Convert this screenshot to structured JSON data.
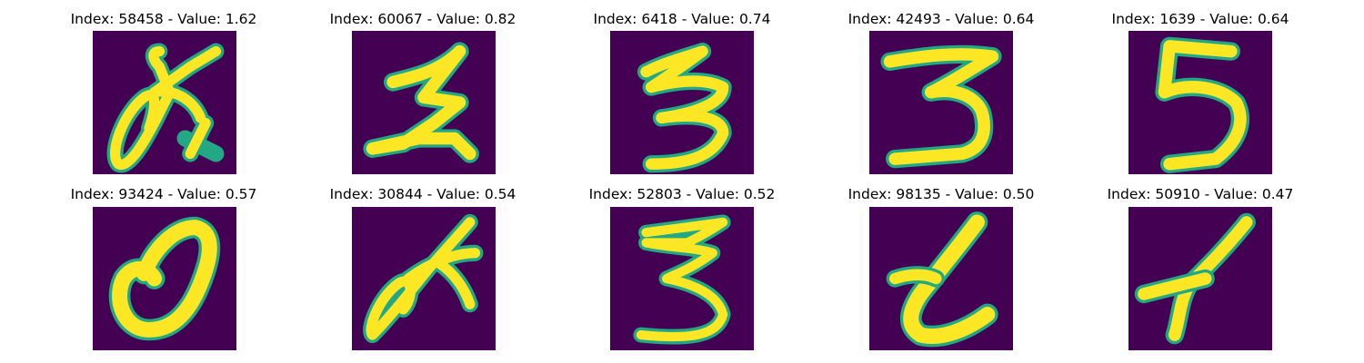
{
  "colors": {
    "background": "#440154",
    "stroke_core": "#fde725",
    "stroke_edge": "#22a884"
  },
  "panels": [
    {
      "title": "Index: 58458 - Value: 1.62",
      "index": 58458,
      "value": 1.62,
      "glyph": "loop-stroke-digit"
    },
    {
      "title": "Index: 60067 - Value: 0.82",
      "index": 60067,
      "value": 0.82,
      "glyph": "digit-2"
    },
    {
      "title": "Index: 6418 - Value: 0.74",
      "index": 6418,
      "value": 0.74,
      "glyph": "digit-3"
    },
    {
      "title": "Index: 42493 - Value: 0.64",
      "index": 42493,
      "value": 0.64,
      "glyph": "digit-3"
    },
    {
      "title": "Index: 1639 - Value: 0.64",
      "index": 1639,
      "value": 0.64,
      "glyph": "digit-5"
    },
    {
      "title": "Index: 93424 - Value: 0.57",
      "index": 93424,
      "value": 0.57,
      "glyph": "digit-0"
    },
    {
      "title": "Index: 30844 - Value: 0.54",
      "index": 30844,
      "value": 0.54,
      "glyph": "loop-stroke-digit"
    },
    {
      "title": "Index: 52803 - Value: 0.52",
      "index": 52803,
      "value": 0.52,
      "glyph": "digit-3"
    },
    {
      "title": "Index: 98135 - Value: 0.50",
      "index": 98135,
      "value": 0.5,
      "glyph": "digit-2"
    },
    {
      "title": "Index: 50910 - Value: 0.47",
      "index": 50910,
      "value": 0.47,
      "glyph": "digit-1"
    }
  ]
}
